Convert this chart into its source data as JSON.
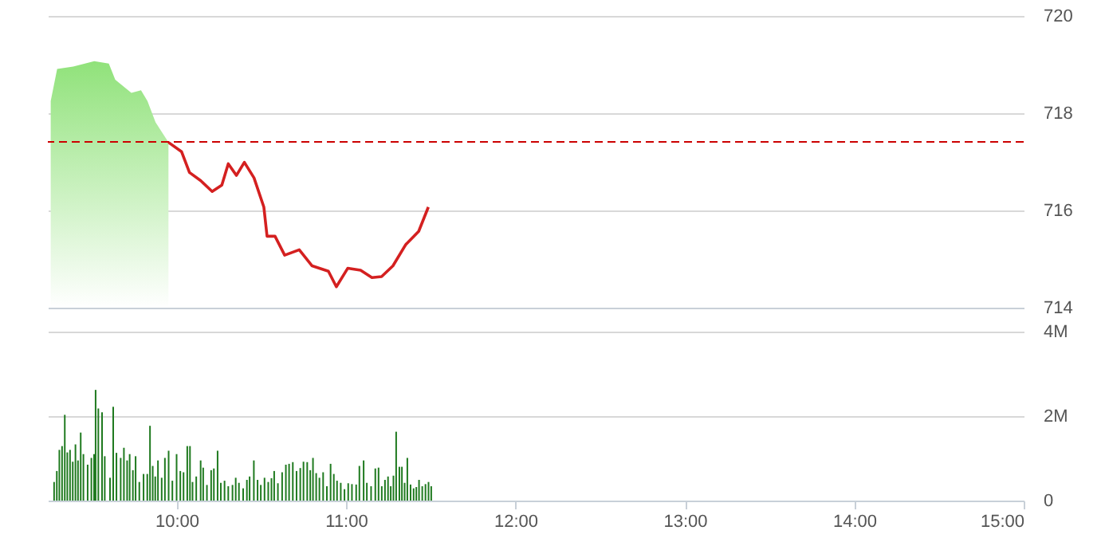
{
  "chart_data": [
    {
      "type": "line",
      "xlim": [
        9.24,
        15.0
      ],
      "ylim": [
        714,
        720
      ],
      "yticks": [
        714,
        716,
        718,
        720
      ],
      "grid": "y",
      "tick_labels": "y",
      "ref_lines": [
        {
          "axis": "y",
          "value": 717.41,
          "color": "#cc0000",
          "line_style": "dashed"
        }
      ],
      "series": [
        {
          "type": "area",
          "color": "#90e27a",
          "x": [
            9.257,
            9.295,
            9.39,
            9.514,
            9.6,
            9.638,
            9.733,
            9.79,
            9.828,
            9.876,
            9.952
          ],
          "values": [
            718.25,
            718.91,
            718.96,
            719.07,
            719.02,
            718.69,
            718.42,
            718.47,
            718.25,
            717.81,
            717.4
          ]
        },
        {
          "type": "line",
          "color": "#d42020",
          "x": [
            9.952,
            10.029,
            10.076,
            10.143,
            10.21,
            10.267,
            10.305,
            10.353,
            10.4,
            10.457,
            10.515,
            10.534,
            10.581,
            10.638,
            10.724,
            10.8,
            10.896,
            10.943,
            11.01,
            11.086,
            11.153,
            11.21,
            11.277,
            11.353,
            11.429,
            11.486
          ],
          "values": [
            717.4,
            717.21,
            716.78,
            716.61,
            716.39,
            716.52,
            716.96,
            716.72,
            716.99,
            716.67,
            716.07,
            715.47,
            715.47,
            715.08,
            715.19,
            714.86,
            714.75,
            714.43,
            714.81,
            714.77,
            714.62,
            714.64,
            714.86,
            715.3,
            715.57,
            716.07
          ]
        }
      ]
    },
    {
      "type": "bar",
      "xlim": [
        9.24,
        15.0
      ],
      "xticks": [
        {
          "value": 10,
          "label": "10:00"
        },
        {
          "value": 11,
          "label": "11:00"
        },
        {
          "value": 12,
          "label": "12:00"
        },
        {
          "value": 13,
          "label": "13:00"
        },
        {
          "value": 14,
          "label": "14:00"
        },
        {
          "value": 15,
          "label": "15:00"
        }
      ],
      "ylim": [
        0,
        4
      ],
      "yticks": [
        0,
        {
          "value": 2,
          "label": "2M"
        },
        {
          "value": 4,
          "label": "4M"
        }
      ],
      "grid": "y",
      "series": [
        {
          "color": "#1f7a1f",
          "x": [
            9.277,
            9.293,
            9.308,
            9.324,
            9.34,
            9.355,
            9.371,
            9.387,
            9.403,
            9.418,
            9.434,
            9.45,
            9.475,
            9.497,
            9.513,
            9.522,
            9.538,
            9.56,
            9.576,
            9.607,
            9.626,
            9.645,
            9.67,
            9.689,
            9.708,
            9.723,
            9.742,
            9.758,
            9.78,
            9.805,
            9.827,
            9.843,
            9.859,
            9.874,
            9.89,
            9.912,
            9.931,
            9.953,
            9.975,
            10.0,
            10.022,
            10.041,
            10.063,
            10.079,
            10.094,
            10.116,
            10.142,
            10.157,
            10.179,
            10.204,
            10.22,
            10.242,
            10.261,
            10.283,
            10.305,
            10.33,
            10.349,
            10.368,
            10.393,
            10.415,
            10.431,
            10.456,
            10.478,
            10.497,
            10.519,
            10.541,
            10.56,
            10.576,
            10.598,
            10.623,
            10.645,
            10.664,
            10.686,
            10.708,
            10.73,
            10.749,
            10.771,
            10.789,
            10.805,
            10.824,
            10.843,
            10.865,
            10.887,
            10.909,
            10.928,
            10.947,
            10.969,
            10.991,
            11.013,
            11.035,
            11.06,
            11.079,
            11.104,
            11.123,
            11.148,
            11.173,
            11.192,
            11.211,
            11.23,
            11.248,
            11.264,
            11.28,
            11.296,
            11.315,
            11.33,
            11.346,
            11.362,
            11.381,
            11.399,
            11.415,
            11.431,
            11.45,
            11.469,
            11.487,
            11.503
          ],
          "values": [
            0.44,
            0.7,
            1.2,
            1.29,
            2.03,
            1.14,
            1.2,
            0.92,
            1.33,
            0.95,
            1.61,
            1.1,
            0.85,
            1.01,
            1.1,
            2.62,
            2.18,
            2.09,
            1.05,
            0.54,
            2.22,
            1.13,
            1.01,
            1.25,
            0.95,
            1.1,
            0.72,
            1.05,
            0.44,
            0.63,
            0.63,
            1.77,
            0.82,
            0.57,
            0.95,
            0.54,
            1.01,
            1.18,
            0.47,
            1.1,
            0.7,
            0.67,
            1.29,
            1.29,
            0.44,
            0.57,
            0.95,
            0.78,
            0.37,
            0.72,
            0.76,
            1.18,
            0.42,
            0.47,
            0.34,
            0.37,
            0.54,
            0.42,
            0.29,
            0.49,
            0.57,
            0.95,
            0.49,
            0.37,
            0.54,
            0.44,
            0.53,
            0.7,
            0.41,
            0.67,
            0.85,
            0.87,
            0.91,
            0.7,
            0.77,
            0.92,
            0.91,
            0.72,
            1.01,
            0.65,
            0.54,
            0.67,
            0.34,
            0.87,
            0.63,
            0.47,
            0.42,
            0.27,
            0.41,
            0.39,
            0.38,
            0.82,
            0.95,
            0.42,
            0.34,
            0.76,
            0.78,
            0.34,
            0.49,
            0.57,
            0.34,
            0.59,
            1.63,
            0.8,
            0.8,
            0.42,
            1.01,
            0.38,
            0.29,
            0.32,
            0.49,
            0.34,
            0.39,
            0.44,
            0.34
          ]
        }
      ]
    }
  ]
}
